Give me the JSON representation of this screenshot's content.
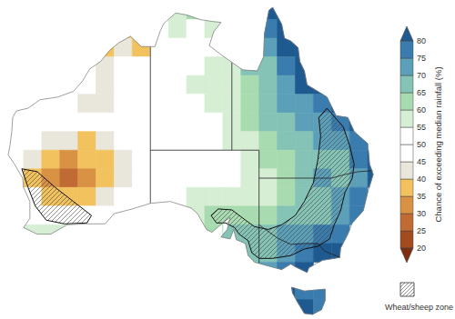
{
  "chart_data": {
    "type": "map",
    "tick_labels": false,
    "cells": {
      "lon": [
        114,
        116,
        118,
        120,
        122,
        124,
        126,
        128,
        130,
        132,
        134,
        136,
        138,
        140,
        142,
        144,
        146,
        148,
        150,
        152,
        154
      ],
      "lat": [
        -11,
        -13,
        -15,
        -17,
        -19,
        -21,
        -23,
        -25,
        -27,
        -29,
        -31,
        -33,
        -35,
        -37,
        -39,
        -41,
        -43
      ],
      "values": [
        [
          null,
          null,
          null,
          null,
          null,
          null,
          null,
          null,
          55,
          55,
          60,
          58,
          null,
          null,
          82,
          82,
          null,
          null,
          null,
          null,
          null
        ],
        [
          null,
          null,
          null,
          null,
          null,
          null,
          38,
          38,
          50,
          55,
          52,
          55,
          null,
          null,
          78,
          82,
          null,
          null,
          null,
          null,
          null
        ],
        [
          null,
          null,
          null,
          null,
          null,
          38,
          40,
          38,
          45,
          50,
          50,
          50,
          52,
          null,
          72,
          80,
          82,
          null,
          null,
          null,
          null
        ],
        [
          null,
          null,
          null,
          null,
          45,
          42,
          45,
          48,
          50,
          50,
          52,
          55,
          58,
          65,
          68,
          75,
          82,
          null,
          null,
          null,
          null
        ],
        [
          null,
          null,
          null,
          45,
          48,
          40,
          48,
          50,
          50,
          50,
          55,
          55,
          58,
          62,
          68,
          72,
          80,
          80,
          null,
          null,
          null
        ],
        [
          50,
          48,
          48,
          45,
          42,
          40,
          45,
          48,
          50,
          50,
          52,
          55,
          55,
          60,
          65,
          70,
          72,
          75,
          80,
          null,
          null
        ],
        [
          50,
          48,
          48,
          45,
          45,
          48,
          50,
          50,
          50,
          48,
          50,
          52,
          55,
          60,
          65,
          68,
          70,
          72,
          78,
          80,
          null
        ],
        [
          48,
          45,
          42,
          40,
          38,
          40,
          45,
          48,
          50,
          50,
          50,
          52,
          55,
          58,
          62,
          65,
          68,
          70,
          72,
          78,
          null
        ],
        [
          45,
          40,
          35,
          33,
          35,
          38,
          42,
          45,
          48,
          48,
          50,
          50,
          52,
          55,
          60,
          62,
          65,
          68,
          68,
          75,
          80
        ],
        [
          45,
          38,
          30,
          28,
          32,
          38,
          42,
          45,
          48,
          48,
          50,
          50,
          52,
          55,
          58,
          62,
          65,
          70,
          68,
          72,
          80
        ],
        [
          null,
          45,
          38,
          35,
          38,
          42,
          45,
          48,
          50,
          50,
          55,
          58,
          55,
          55,
          58,
          62,
          65,
          68,
          70,
          75,
          null
        ],
        [
          null,
          50,
          48,
          45,
          48,
          50,
          50,
          null,
          null,
          null,
          55,
          60,
          62,
          60,
          62,
          65,
          65,
          68,
          72,
          78,
          null
        ],
        [
          null,
          55,
          55,
          55,
          52,
          null,
          null,
          null,
          null,
          null,
          null,
          62,
          65,
          65,
          68,
          70,
          70,
          75,
          78,
          null,
          null
        ],
        [
          null,
          null,
          null,
          null,
          null,
          null,
          null,
          null,
          null,
          null,
          null,
          null,
          null,
          65,
          68,
          72,
          78,
          80,
          82,
          null,
          null
        ],
        [
          null,
          null,
          null,
          null,
          null,
          null,
          null,
          null,
          null,
          null,
          null,
          null,
          null,
          65,
          70,
          75,
          80,
          null,
          null,
          null,
          null
        ],
        [
          null,
          null,
          null,
          null,
          null,
          null,
          null,
          null,
          null,
          null,
          null,
          null,
          null,
          null,
          null,
          85,
          78,
          75,
          null,
          null,
          null
        ],
        [
          null,
          null,
          null,
          null,
          null,
          null,
          null,
          null,
          null,
          null,
          null,
          null,
          null,
          null,
          null,
          82,
          80,
          75,
          null,
          null,
          null
        ]
      ]
    },
    "colorbar": {
      "label": "Chance of exceeding median rainfall (%)",
      "range": [
        20,
        80
      ],
      "ticks": [
        20,
        25,
        30,
        35,
        40,
        45,
        50,
        55,
        60,
        65,
        70,
        75,
        80
      ],
      "bounds": [
        20,
        25,
        30,
        35,
        40,
        45,
        50,
        55,
        60,
        65,
        70,
        75,
        80
      ],
      "colors": [
        "#a34a1f",
        "#c16b34",
        "#d99144",
        "#f1c25e",
        "#e9e6dc",
        "#ffffff",
        "#ffffff",
        "#d6efd4",
        "#a9dbb1",
        "#84c3b5",
        "#5b9fb8",
        "#3a7cae"
      ],
      "under_color": "#7f2f10",
      "over_color": "#1e5a90"
    },
    "zone_label": "Wheat/sheep zone"
  }
}
